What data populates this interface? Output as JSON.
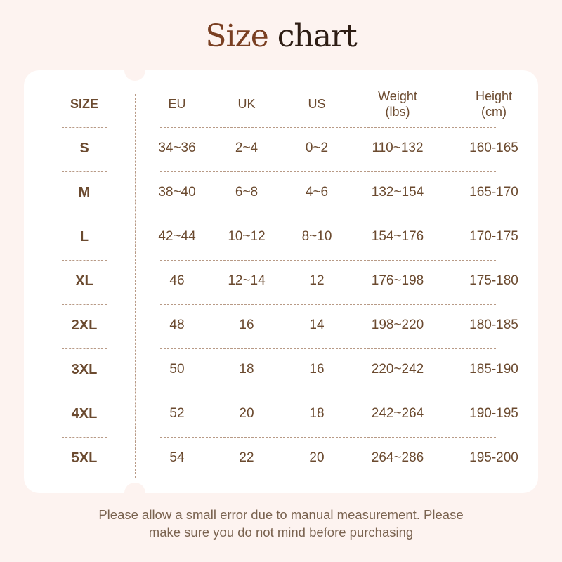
{
  "title": {
    "part1": "Size",
    "part2": "chart"
  },
  "colors": {
    "background": "#fdf3f0",
    "card": "#ffffff",
    "text": "#6b4a2f",
    "title_size": "#7a3f22",
    "title_chart": "#2e1d14"
  },
  "headers": [
    "SIZE",
    "EU",
    "UK",
    "US",
    "Weight\n(lbs)",
    "Height\n(cm)"
  ],
  "header_lines": [
    [
      "SIZE"
    ],
    [
      "EU"
    ],
    [
      "UK"
    ],
    [
      "US"
    ],
    [
      "Weight",
      "(lbs)"
    ],
    [
      "Height",
      "(cm)"
    ]
  ],
  "rows": [
    [
      "S",
      "34~36",
      "2~4",
      "0~2",
      "110~132",
      "160-165"
    ],
    [
      "M",
      "38~40",
      "6~8",
      "4~6",
      "132~154",
      "165-170"
    ],
    [
      "L",
      "42~44",
      "10~12",
      "8~10",
      "154~176",
      "170-175"
    ],
    [
      "XL",
      "46",
      "12~14",
      "12",
      "176~198",
      "175-180"
    ],
    [
      "2XL",
      "48",
      "16",
      "14",
      "198~220",
      "180-185"
    ],
    [
      "3XL",
      "50",
      "18",
      "16",
      "220~242",
      "185-190"
    ],
    [
      "4XL",
      "52",
      "20",
      "18",
      "242~264",
      "190-195"
    ],
    [
      "5XL",
      "54",
      "22",
      "20",
      "264~286",
      "195-200"
    ]
  ],
  "note": {
    "line1": "Please allow a small error due to manual measurement. Please",
    "line2": "make sure you do not mind before purchasing"
  }
}
